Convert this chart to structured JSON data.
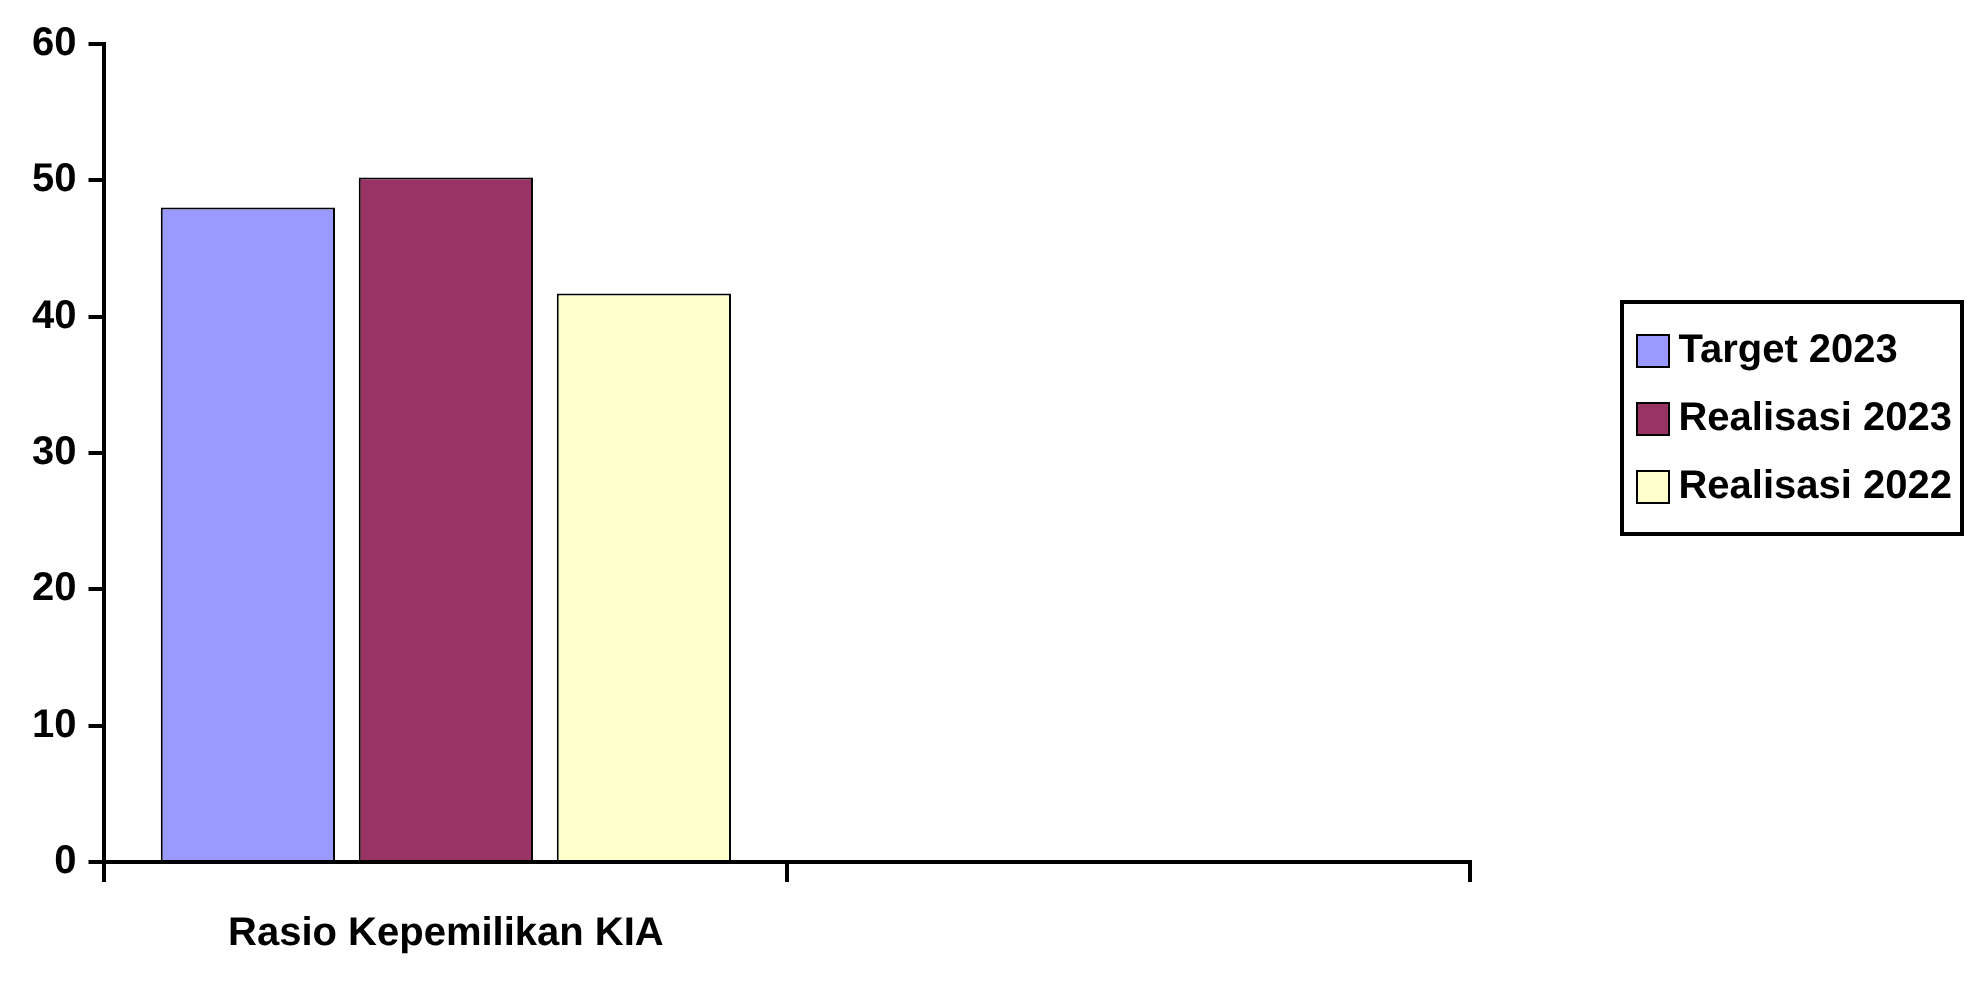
{
  "chart_data": {
    "type": "bar",
    "categories": [
      "Rasio Kepemilikan KIA",
      null
    ],
    "series": [
      {
        "name": "Target 2023",
        "color": "#9999ff",
        "values": [
          48,
          null
        ]
      },
      {
        "name": "Realisasi 2023",
        "color": "#993366",
        "values": [
          50.2,
          null
        ]
      },
      {
        "name": "Realisasi 2022",
        "color": "#ffffcc",
        "values": [
          41.7,
          null
        ]
      }
    ],
    "ylim": [
      0,
      60
    ],
    "yticks": [
      0,
      10,
      20,
      30,
      40,
      50,
      60
    ],
    "grid": false,
    "legend": "right"
  }
}
